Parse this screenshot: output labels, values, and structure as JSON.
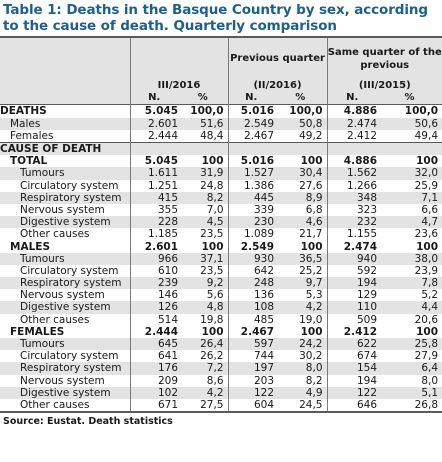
{
  "title": "Table 1: Deaths in the Basque Country by sex, according to the cause of death. Quarterly comparison",
  "header": {
    "col2_top": "Previous quarter",
    "col3_top": "Same quarter of the previous",
    "col1_period": "III/2016",
    "col2_period": "(II/2016)",
    "col3_period": "(III/2015)",
    "n_label": "N.",
    "pct_label": "%"
  },
  "deaths": {
    "label": "DEATHS",
    "rows": [
      {
        "label": "DEATHS",
        "v": [
          "5.045",
          "100,0",
          "5.016",
          "100,0",
          "4.886",
          "100,0"
        ]
      },
      {
        "label": "Males",
        "v": [
          "2.601",
          "51,6",
          "2.549",
          "50,8",
          "2.474",
          "50,6"
        ]
      },
      {
        "label": "Females",
        "v": [
          "2.444",
          "48,4",
          "2.467",
          "49,2",
          "2.412",
          "49,4"
        ]
      }
    ]
  },
  "cause_label": "CAUSE OF DEATH",
  "groups": [
    {
      "label": "TOTAL",
      "v": [
        "5.045",
        "100",
        "5.016",
        "100",
        "4.886",
        "100"
      ],
      "rows": [
        {
          "label": "Tumours",
          "v": [
            "1.611",
            "31,9",
            "1.527",
            "30,4",
            "1.562",
            "32,0"
          ]
        },
        {
          "label": "Circulatory system",
          "v": [
            "1.251",
            "24,8",
            "1.386",
            "27,6",
            "1.266",
            "25,9"
          ]
        },
        {
          "label": "Respiratory system",
          "v": [
            "415",
            "8,2",
            "445",
            "8,9",
            "348",
            "7,1"
          ]
        },
        {
          "label": "Nervous system",
          "v": [
            "355",
            "7,0",
            "339",
            "6,8",
            "323",
            "6,6"
          ]
        },
        {
          "label": "Digestive system",
          "v": [
            "228",
            "4,5",
            "230",
            "4,6",
            "232",
            "4,7"
          ]
        },
        {
          "label": "Other causes",
          "v": [
            "1.185",
            "23,5",
            "1.089",
            "21,7",
            "1.155",
            "23,6"
          ]
        }
      ]
    },
    {
      "label": "MALES",
      "v": [
        "2.601",
        "100",
        "2.549",
        "100",
        "2.474",
        "100"
      ],
      "rows": [
        {
          "label": "Tumours",
          "v": [
            "966",
            "37,1",
            "930",
            "36,5",
            "940",
            "38,0"
          ]
        },
        {
          "label": "Circulatory system",
          "v": [
            "610",
            "23,5",
            "642",
            "25,2",
            "592",
            "23,9"
          ]
        },
        {
          "label": "Respiratory system",
          "v": [
            "239",
            "9,2",
            "248",
            "9,7",
            "194",
            "7,8"
          ]
        },
        {
          "label": "Nervous system",
          "v": [
            "146",
            "5,6",
            "136",
            "5,3",
            "129",
            "5,2"
          ]
        },
        {
          "label": "Digestive system",
          "v": [
            "126",
            "4,8",
            "108",
            "4,2",
            "110",
            "4,4"
          ]
        },
        {
          "label": "Other causes",
          "v": [
            "514",
            "19,8",
            "485",
            "19,0",
            "509",
            "20,6"
          ]
        }
      ]
    },
    {
      "label": "FEMALES",
      "v": [
        "2.444",
        "100",
        "2.467",
        "100",
        "2.412",
        "100"
      ],
      "rows": [
        {
          "label": "Tumours",
          "v": [
            "645",
            "26,4",
            "597",
            "24,2",
            "622",
            "25,8"
          ]
        },
        {
          "label": "Circulatory system",
          "v": [
            "641",
            "26,2",
            "744",
            "30,2",
            "674",
            "27,9"
          ]
        },
        {
          "label": "Respiratory system",
          "v": [
            "176",
            "7,2",
            "197",
            "8,0",
            "154",
            "6,4"
          ]
        },
        {
          "label": "Nervous system",
          "v": [
            "209",
            "8,6",
            "203",
            "8,2",
            "194",
            "8,0"
          ]
        },
        {
          "label": "Digestive system",
          "v": [
            "102",
            "4,2",
            "122",
            "4,9",
            "122",
            "5,1"
          ]
        },
        {
          "label": "Other causes",
          "v": [
            "671",
            "27,5",
            "604",
            "24,5",
            "646",
            "26,8"
          ]
        }
      ]
    }
  ],
  "source": "Source: Eustat. Death statistics"
}
